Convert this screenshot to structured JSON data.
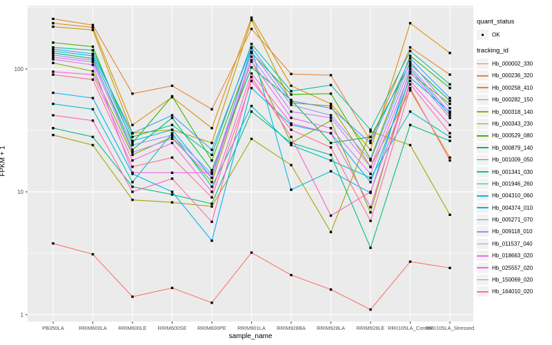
{
  "figure": {
    "background": "#FFFFFF",
    "panel_background": "#EBEBEB",
    "grid_color": "#FFFFFF",
    "axis_text_color": "#4D4D4D",
    "tick_color": "#333333",
    "point_color": "#000000"
  },
  "axes": {
    "x_title": "sample_name",
    "y_title": "FPKM + 1",
    "y_ticks": [
      "1",
      "10",
      "100"
    ]
  },
  "legend": {
    "quant_status_title": "quant_status",
    "quant_status_items": [
      {
        "label": "OK"
      }
    ],
    "tracking_title": "tracking_id"
  },
  "chart_data": {
    "type": "line",
    "x_type": "categorical",
    "y_scale": "log10",
    "ylim": [
      0.9,
      330
    ],
    "grid": true,
    "legend_position": "right",
    "title": "",
    "xlabel": "sample_name",
    "ylabel": "FPKM + 1",
    "point_shape": "square",
    "categories": [
      "PB350LA",
      "RRIM600LA",
      "RRIM600LE",
      "RRIM600SE",
      "RRIM600PE",
      "RRIM901LA",
      "RRIM928BA",
      "RRIM928LA",
      "RRIM928LE",
      "RRII105LA_Control",
      "RRII105LA_Stressed"
    ],
    "series": [
      {
        "name": "Hb_000002_330",
        "color": "#F8766D",
        "values": [
          3.8,
          3.1,
          1.4,
          1.65,
          1.25,
          3.2,
          2.1,
          1.6,
          1.1,
          2.7,
          2.4
        ]
      },
      {
        "name": "Hb_000236_320",
        "color": "#EA8331",
        "values": [
          256,
          228,
          63,
          73,
          47,
          212,
          91,
          89,
          26,
          150,
          90
        ]
      },
      {
        "name": "Hb_000258_410",
        "color": "#D89000",
        "values": [
          236,
          218,
          35,
          59,
          33,
          262,
          73,
          52,
          22,
          236,
          135
        ]
      },
      {
        "name": "Hb_000282_150",
        "color": "#C09B00",
        "values": [
          221,
          208,
          30,
          32,
          25,
          250,
          53,
          50,
          16,
          67,
          19
        ]
      },
      {
        "name": "Hb_000318_140",
        "color": "#A3A500",
        "values": [
          29,
          24,
          8.6,
          8.2,
          7.6,
          27,
          16.5,
          4.7,
          31,
          24,
          6.5
        ]
      },
      {
        "name": "Hb_000343_230",
        "color": "#7CAE00",
        "values": [
          112,
          96,
          20,
          28,
          12,
          118,
          25,
          38,
          6.8,
          92,
          52
        ]
      },
      {
        "name": "Hb_000529_080",
        "color": "#39B600",
        "values": [
          164,
          152,
          25,
          60,
          18,
          135,
          62,
          63,
          18.5,
          128,
          70
        ]
      },
      {
        "name": "Hb_000879_140",
        "color": "#00BB4E",
        "values": [
          135,
          122,
          22,
          40,
          15,
          103,
          56,
          25,
          28,
          110,
          55
        ]
      },
      {
        "name": "Hb_001009_050",
        "color": "#00BF7D",
        "values": [
          33,
          28,
          11,
          9.5,
          8,
          45,
          25,
          20,
          3.5,
          35,
          26
        ]
      },
      {
        "name": "Hb_001341_030",
        "color": "#00C1A3",
        "values": [
          150,
          142,
          28,
          35,
          20,
          160,
          66,
          74,
          32,
          140,
          75
        ]
      },
      {
        "name": "Hb_001946_260",
        "color": "#00BFC4",
        "values": [
          52,
          47,
          12,
          30,
          11,
          50,
          24,
          18,
          13,
          45,
          28
        ]
      },
      {
        "name": "Hb_004310_060",
        "color": "#00BAE0",
        "values": [
          140,
          128,
          26,
          32,
          13,
          148,
          10.4,
          14.7,
          9.8,
          100,
          42
        ]
      },
      {
        "name": "Hb_004374_010",
        "color": "#00B0F6",
        "values": [
          64,
          58,
          14,
          10,
          4.0,
          70,
          35,
          30,
          12,
          85,
          45
        ]
      },
      {
        "name": "Hb_005271_070",
        "color": "#35A2FF",
        "values": [
          145,
          133,
          30,
          42,
          22,
          150,
          55,
          48,
          25,
          122,
          58
        ]
      },
      {
        "name": "Hb_009118_010",
        "color": "#9590FF",
        "values": [
          130,
          118,
          24,
          29,
          14,
          138,
          51,
          42,
          18,
          115,
          48
        ]
      },
      {
        "name": "Hb_011537_040",
        "color": "#C77CFF",
        "values": [
          125,
          114,
          21,
          27,
          13,
          126,
          45,
          40,
          15.9,
          105,
          44
        ]
      },
      {
        "name": "Hb_018663_020",
        "color": "#E76BF3",
        "values": [
          120,
          108,
          14.3,
          14.3,
          14.3,
          115,
          40,
          33,
          14,
          95,
          40
        ]
      },
      {
        "name": "Hb_025557_020",
        "color": "#FA62DB",
        "values": [
          95,
          90,
          18,
          25,
          10,
          92,
          36,
          30,
          7.5,
          80,
          35
        ]
      },
      {
        "name": "Hb_150069_020",
        "color": "#FF62BC",
        "values": [
          42,
          38,
          10,
          12.8,
          5.7,
          86,
          28,
          6.4,
          10,
          75,
          30
        ]
      },
      {
        "name": "Hb_164010_020",
        "color": "#FF6A98",
        "values": [
          90,
          82,
          16,
          19,
          9,
          80,
          32,
          23,
          5.8,
          70,
          18
        ]
      }
    ]
  }
}
